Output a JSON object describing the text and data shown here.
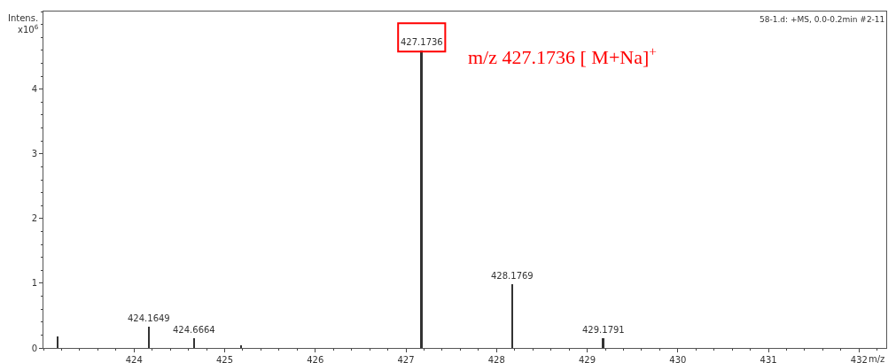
{
  "chart_data": {
    "type": "bar",
    "xlabel": "m/z",
    "ylabel": "Intens.\nx10$^{6}$",
    "x": [
      423.16,
      424.1649,
      424.6664,
      425.18,
      427.1736,
      428.1769,
      429.1791
    ],
    "values": [
      0.18,
      0.33,
      0.15,
      0.04,
      4.6,
      0.99,
      0.15
    ],
    "color": "#333333",
    "xlim": [
      423,
      432.3
    ],
    "xticks": [
      424,
      425,
      426,
      427,
      428,
      429,
      430,
      431,
      432
    ],
    "ylim": [
      0,
      5.2
    ],
    "yticks": [
      0,
      1,
      2,
      3,
      4
    ],
    "grid": false,
    "legend": false,
    "annotations": [
      {
        "text": "424.1649",
        "x": 424.1649,
        "y": 0.33
      },
      {
        "text": "424.6664",
        "x": 424.6664,
        "y": 0.15
      },
      {
        "text": "427.1736",
        "x": 427.1736,
        "y": 4.6
      },
      {
        "text": "428.1769",
        "x": 428.1769,
        "y": 0.99
      },
      {
        "text": "429.1791",
        "x": 429.1791,
        "y": 0.15
      },
      "m/z 427.1736 [ M+Na]$^{+}$",
      "58-1.d: +MS, 0.0-0.2min #2-11"
    ]
  }
}
